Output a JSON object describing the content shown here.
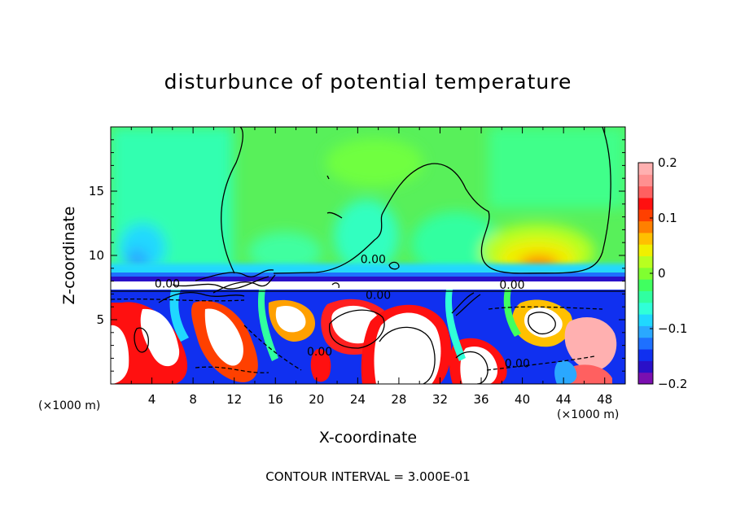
{
  "chart_data": {
    "type": "heatmap",
    "title": "disturbunce of potential temperature",
    "xlabel": "X-coordinate",
    "ylabel": "Z-coordinate",
    "x_unit_label": "(×1000 m)",
    "xlim": [
      0,
      50
    ],
    "ylim": [
      0,
      20
    ],
    "x_ticks": [
      "4",
      "8",
      "12",
      "16",
      "20",
      "24",
      "28",
      "32",
      "36",
      "40",
      "44",
      "48"
    ],
    "x_tick_values": [
      4,
      8,
      12,
      16,
      20,
      24,
      28,
      32,
      36,
      40,
      44,
      48
    ],
    "y_ticks": [
      "5",
      "10",
      "15"
    ],
    "y_tick_values": [
      5,
      10,
      15
    ],
    "colorbar": {
      "min": -0.2,
      "max": 0.2,
      "tick_labels": [
        "0.2",
        "0.1",
        "0",
        "−0.1",
        "−0.2"
      ],
      "tick_values": [
        0.2,
        0.1,
        0,
        -0.1,
        -0.2
      ],
      "colors": [
        "#7a0fb0",
        "#2a10c8",
        "#1030f0",
        "#1e70ff",
        "#2aa8ff",
        "#20d8ff",
        "#30ffd8",
        "#30ffa0",
        "#40ff60",
        "#80ff30",
        "#b8ff20",
        "#f0f000",
        "#ffc000",
        "#ff8000",
        "#ff4000",
        "#ff1010",
        "#ff6060",
        "#ff9090",
        "#ffb0b0"
      ]
    },
    "contour_labels": [
      {
        "text": "0.00",
        "x": 25.5,
        "z": 9.4
      },
      {
        "text": "0.00",
        "x": 5.5,
        "z": 7.5
      },
      {
        "text": "0.00",
        "x": 39.0,
        "z": 7.4
      },
      {
        "text": "0.00",
        "x": 26.0,
        "z": 6.6
      },
      {
        "text": "0.00",
        "x": 20.3,
        "z": 2.2
      },
      {
        "text": "0.00",
        "x": 39.5,
        "z": 1.3
      }
    ],
    "contour_interval_text": "CONTOUR INTERVAL = 3.000E-01",
    "regions": [
      {
        "desc": "upper layer",
        "z_range": [
          8.5,
          20
        ],
        "approx_value": -0.02
      },
      {
        "desc": "warm blob",
        "x": 41.5,
        "z": 9.3,
        "approx_value": 0.1
      },
      {
        "desc": "inversion layer",
        "z_range": [
          7.2,
          8.2
        ],
        "approx_value": -0.2
      },
      {
        "desc": "lower turbulent layer",
        "z_range": [
          0,
          7.2
        ],
        "value_range": [
          -0.2,
          0.2
        ]
      }
    ]
  }
}
